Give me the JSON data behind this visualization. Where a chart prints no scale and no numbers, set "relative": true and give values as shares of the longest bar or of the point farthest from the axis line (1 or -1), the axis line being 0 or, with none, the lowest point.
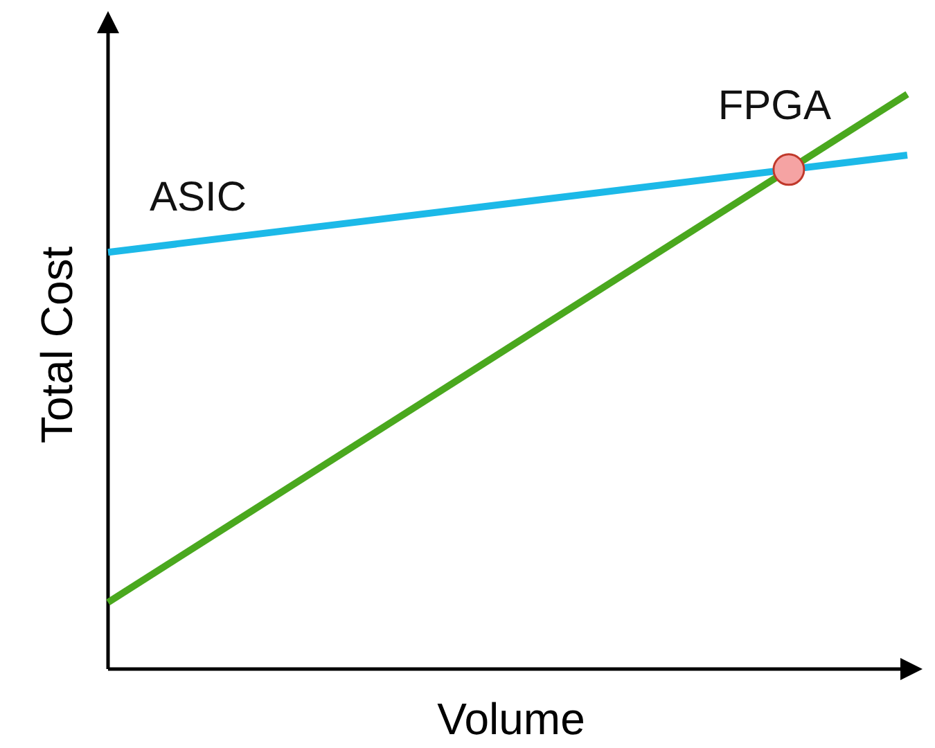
{
  "chart_data": {
    "type": "line",
    "xlabel": "Volume",
    "ylabel": "Total Cost",
    "relative": true,
    "categories": [
      null,
      null
    ],
    "legend": false,
    "series": [
      {
        "name": "ASIC",
        "color": "#1cb9e8",
        "values": [
          0.725,
          0.894
        ]
      },
      {
        "name": "FPGA",
        "color": "#4aa81e",
        "values": [
          0.116,
          1
        ]
      }
    ]
  }
}
